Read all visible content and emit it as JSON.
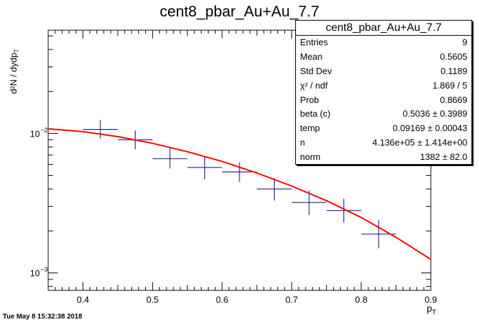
{
  "chart_data": {
    "type": "scatter",
    "title": "cent8_pbar_Au+Au_7.7",
    "xlabel": "p_T",
    "ylabel": "d²N/dydp_T",
    "xlim": [
      0.35,
      0.9
    ],
    "ylim": [
      0.00075,
      0.055
    ],
    "yscale": "log",
    "xticks": [
      {
        "value": 0.4,
        "label": "0.4"
      },
      {
        "value": 0.5,
        "label": "0.5"
      },
      {
        "value": 0.6,
        "label": "0.6"
      },
      {
        "value": 0.7,
        "label": "0.7"
      },
      {
        "value": 0.8,
        "label": "0.8"
      },
      {
        "value": 0.9,
        "label": "0.9"
      }
    ],
    "yticks": [
      {
        "value": 0.01,
        "label": "10",
        "exp": "−2"
      },
      {
        "value": 0.001,
        "label": "10",
        "exp": "−3"
      }
    ],
    "points": [
      {
        "x": 0.425,
        "xerr": 0.025,
        "y": 0.0107,
        "ylo": 0.0092,
        "yhi": 0.0125
      },
      {
        "x": 0.475,
        "xerr": 0.025,
        "y": 0.009,
        "ylo": 0.0077,
        "yhi": 0.0105
      },
      {
        "x": 0.525,
        "xerr": 0.025,
        "y": 0.0066,
        "ylo": 0.0056,
        "yhi": 0.0079
      },
      {
        "x": 0.575,
        "xerr": 0.025,
        "y": 0.0057,
        "ylo": 0.0047,
        "yhi": 0.0068
      },
      {
        "x": 0.625,
        "xerr": 0.025,
        "y": 0.0053,
        "ylo": 0.0045,
        "yhi": 0.0062
      },
      {
        "x": 0.675,
        "xerr": 0.025,
        "y": 0.004,
        "ylo": 0.0033,
        "yhi": 0.0048
      },
      {
        "x": 0.725,
        "xerr": 0.025,
        "y": 0.0032,
        "ylo": 0.0026,
        "yhi": 0.0039
      },
      {
        "x": 0.775,
        "xerr": 0.025,
        "y": 0.0028,
        "ylo": 0.0023,
        "yhi": 0.0034
      },
      {
        "x": 0.825,
        "xerr": 0.025,
        "y": 0.0019,
        "ylo": 0.0015,
        "yhi": 0.0024
      }
    ],
    "fit": {
      "x": [
        0.35,
        0.4,
        0.45,
        0.5,
        0.55,
        0.6,
        0.65,
        0.7,
        0.75,
        0.8,
        0.85,
        0.9
      ],
      "y": [
        0.0108,
        0.0103,
        0.0095,
        0.0085,
        0.0074,
        0.0063,
        0.0052,
        0.0042,
        0.0033,
        0.0025,
        0.0018,
        0.00125
      ]
    },
    "colors": {
      "points": "#000080",
      "fit": "#ff0000"
    }
  },
  "stats": {
    "title": "cent8_pbar_Au+Au_7.7",
    "rows": [
      {
        "label": "Entries",
        "value": "9"
      },
      {
        "label": "Mean",
        "value": "0.5605"
      },
      {
        "label": "Std Dev",
        "value": "0.1189"
      },
      {
        "label": "χ² / ndf",
        "value": "1.869 / 5"
      },
      {
        "label": "Prob",
        "value": "0.8669"
      },
      {
        "label": "beta (c)",
        "value": "0.5036 ± 0.3989"
      },
      {
        "label": "temp",
        "value": "0.09169 ± 0.00043"
      },
      {
        "label": "n",
        "value": "4.136e+05 ± 1.414e+00"
      },
      {
        "label": "norm",
        "value": "1382 ± 82.0"
      }
    ]
  },
  "timestamp": "Tue May  8 15:32:38 2018"
}
